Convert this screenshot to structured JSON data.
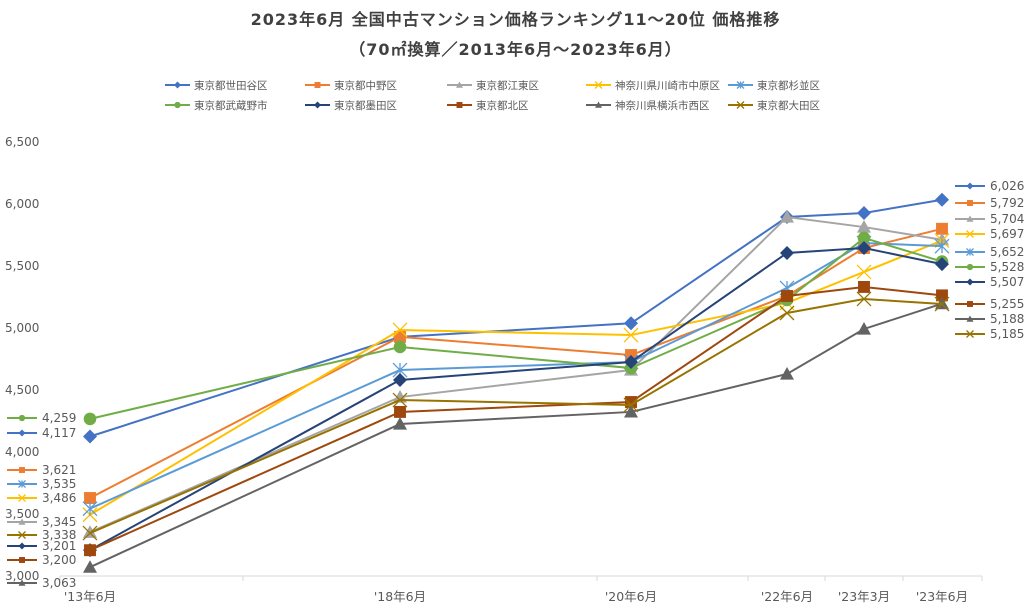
{
  "chart_data": {
    "type": "line",
    "title": "2023年6月 全国中古マンション価格ランキング11〜20位 価格推移",
    "subtitle": "（70㎡換算／2013年6月〜2023年6月）",
    "xlabel": "",
    "ylabel": "",
    "categories": [
      "'13年6月",
      "'18年6月",
      "'20年6月",
      "'22年6月",
      "'23年3月",
      "'23年6月"
    ],
    "y_ticks": [
      "3,000",
      "3,500",
      "4,000",
      "4,500",
      "5,000",
      "5,500",
      "6,000",
      "6,500"
    ],
    "ylim": [
      3000,
      6500
    ],
    "grid": false,
    "legend_position": "top",
    "series": [
      {
        "name": "東京都世田谷区",
        "color": "#4472C4",
        "marker": "diamond",
        "values": [
          4117,
          4920,
          5030,
          5887,
          5919,
          6026
        ],
        "start_label": "4,117",
        "end_label": "6,026"
      },
      {
        "name": "東京都中野区",
        "color": "#ED7D31",
        "marker": "square",
        "values": [
          3621,
          4920,
          4774,
          5250,
          5637,
          5792
        ],
        "start_label": "3,621",
        "end_label": "5,792"
      },
      {
        "name": "東京都江東区",
        "color": "#A5A5A5",
        "marker": "triangle",
        "values": [
          3345,
          4435,
          4653,
          5887,
          5806,
          5704
        ],
        "start_label": "3,345",
        "end_label": "5,704"
      },
      {
        "name": "神奈川県川崎市中原区",
        "color": "#FFC000",
        "marker": "x",
        "values": [
          3486,
          4976,
          4935,
          5194,
          5444,
          5697
        ],
        "start_label": "3,486",
        "end_label": "5,697"
      },
      {
        "name": "東京都杉並区",
        "color": "#5B9BD5",
        "marker": "star",
        "values": [
          3535,
          4653,
          4718,
          5315,
          5677,
          5652
        ],
        "start_label": "3,535",
        "end_label": "5,652"
      },
      {
        "name": "東京都武蔵野市",
        "color": "#70AD47",
        "marker": "circle",
        "values": [
          4259,
          4839,
          4669,
          5218,
          5718,
          5528
        ],
        "start_label": "4,259",
        "end_label": "5,528"
      },
      {
        "name": "東京都墨田区",
        "color": "#264478",
        "marker": "diamond",
        "values": [
          3201,
          4573,
          4718,
          5597,
          5637,
          5507
        ],
        "start_label": "3,201",
        "end_label": "5,507"
      },
      {
        "name": "東京都北区",
        "color": "#9E480E",
        "marker": "square",
        "values": [
          3200,
          4315,
          4395,
          5250,
          5323,
          5255
        ],
        "start_label": "3,200",
        "end_label": "5,255"
      },
      {
        "name": "神奈川県横浜市西区",
        "color": "#636363",
        "marker": "triangle",
        "values": [
          3063,
          4218,
          4315,
          4621,
          4984,
          5188
        ],
        "start_label": "3,063",
        "end_label": "5,188"
      },
      {
        "name": "東京都大田区",
        "color": "#997300",
        "marker": "x",
        "values": [
          3338,
          4411,
          4371,
          5113,
          5226,
          5185
        ],
        "start_label": "3,338",
        "end_label": "5,185"
      }
    ]
  }
}
